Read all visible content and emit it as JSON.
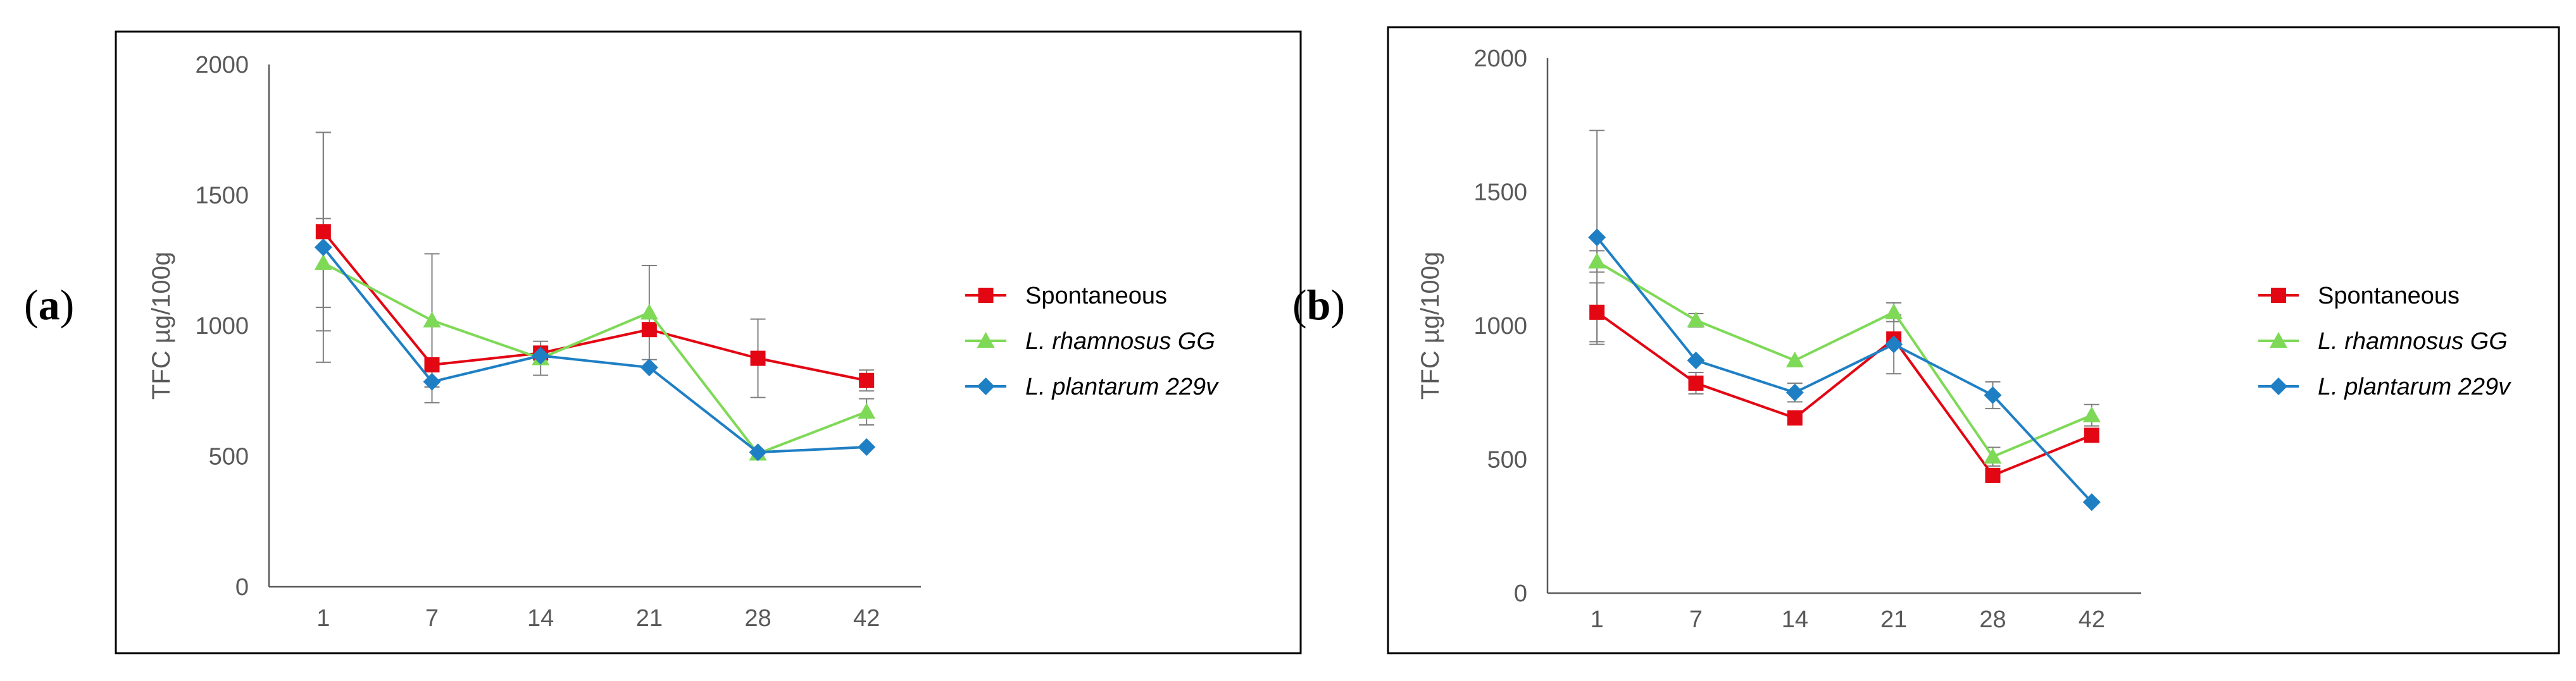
{
  "figure": {
    "panel_labels": [
      {
        "open": "(",
        "letter": "a",
        "close": ")"
      },
      {
        "open": "(",
        "letter": "b",
        "close": ")"
      }
    ]
  },
  "chart_data": [
    {
      "type": "line",
      "panel": "a",
      "categories": [
        "1",
        "7",
        "14",
        "21",
        "28",
        "42"
      ],
      "ylabel": "TFC µg/100g",
      "xlabel": "",
      "ylim": [
        0,
        2000
      ],
      "yticks": [
        0,
        500,
        1000,
        1500,
        2000
      ],
      "grid": false,
      "legend_position": "right",
      "series": [
        {
          "name": "Spontaneous",
          "italic": false,
          "color": "#e30613",
          "marker": "square",
          "values": [
            1360,
            850,
            895,
            985,
            875,
            790
          ],
          "errors": [
            380,
            0,
            0,
            0,
            150,
            40
          ]
        },
        {
          "name": "L. rhamnosus GG",
          "italic": true,
          "color": "#7ed957",
          "marker": "triangle",
          "values": [
            1240,
            1020,
            875,
            1050,
            510,
            670
          ],
          "errors": [
            170,
            255,
            65,
            180,
            0,
            50
          ]
        },
        {
          "name": "L. plantarum 229v",
          "italic": true,
          "color": "#1f7fc4",
          "marker": "diamond",
          "values": [
            1300,
            785,
            885,
            840,
            515,
            535
          ],
          "errors": [
            440,
            80,
            0,
            0,
            0,
            0
          ]
        }
      ]
    },
    {
      "type": "line",
      "panel": "b",
      "categories": [
        "1",
        "7",
        "14",
        "21",
        "28",
        "42"
      ],
      "ylabel": "TFC µg/100g",
      "xlabel": "",
      "ylim": [
        0,
        2000
      ],
      "yticks": [
        0,
        500,
        1000,
        1500,
        2000
      ],
      "grid": false,
      "legend_position": "right",
      "series": [
        {
          "name": "Spontaneous",
          "italic": false,
          "color": "#e30613",
          "marker": "square",
          "values": [
            1050,
            785,
            655,
            950,
            440,
            590
          ],
          "errors": [
            110,
            40,
            0,
            0,
            0,
            0
          ]
        },
        {
          "name": "L. rhamnosus GG",
          "italic": true,
          "color": "#7ed957",
          "marker": "triangle",
          "values": [
            1240,
            1020,
            870,
            1050,
            510,
            665
          ],
          "errors": [
            40,
            25,
            0,
            35,
            35,
            40
          ]
        },
        {
          "name": "L. plantarum 229v",
          "italic": true,
          "color": "#1f7fc4",
          "marker": "diamond",
          "values": [
            1330,
            870,
            750,
            930,
            740,
            340
          ],
          "errors": [
            400,
            0,
            35,
            110,
            50,
            0
          ]
        }
      ]
    }
  ]
}
